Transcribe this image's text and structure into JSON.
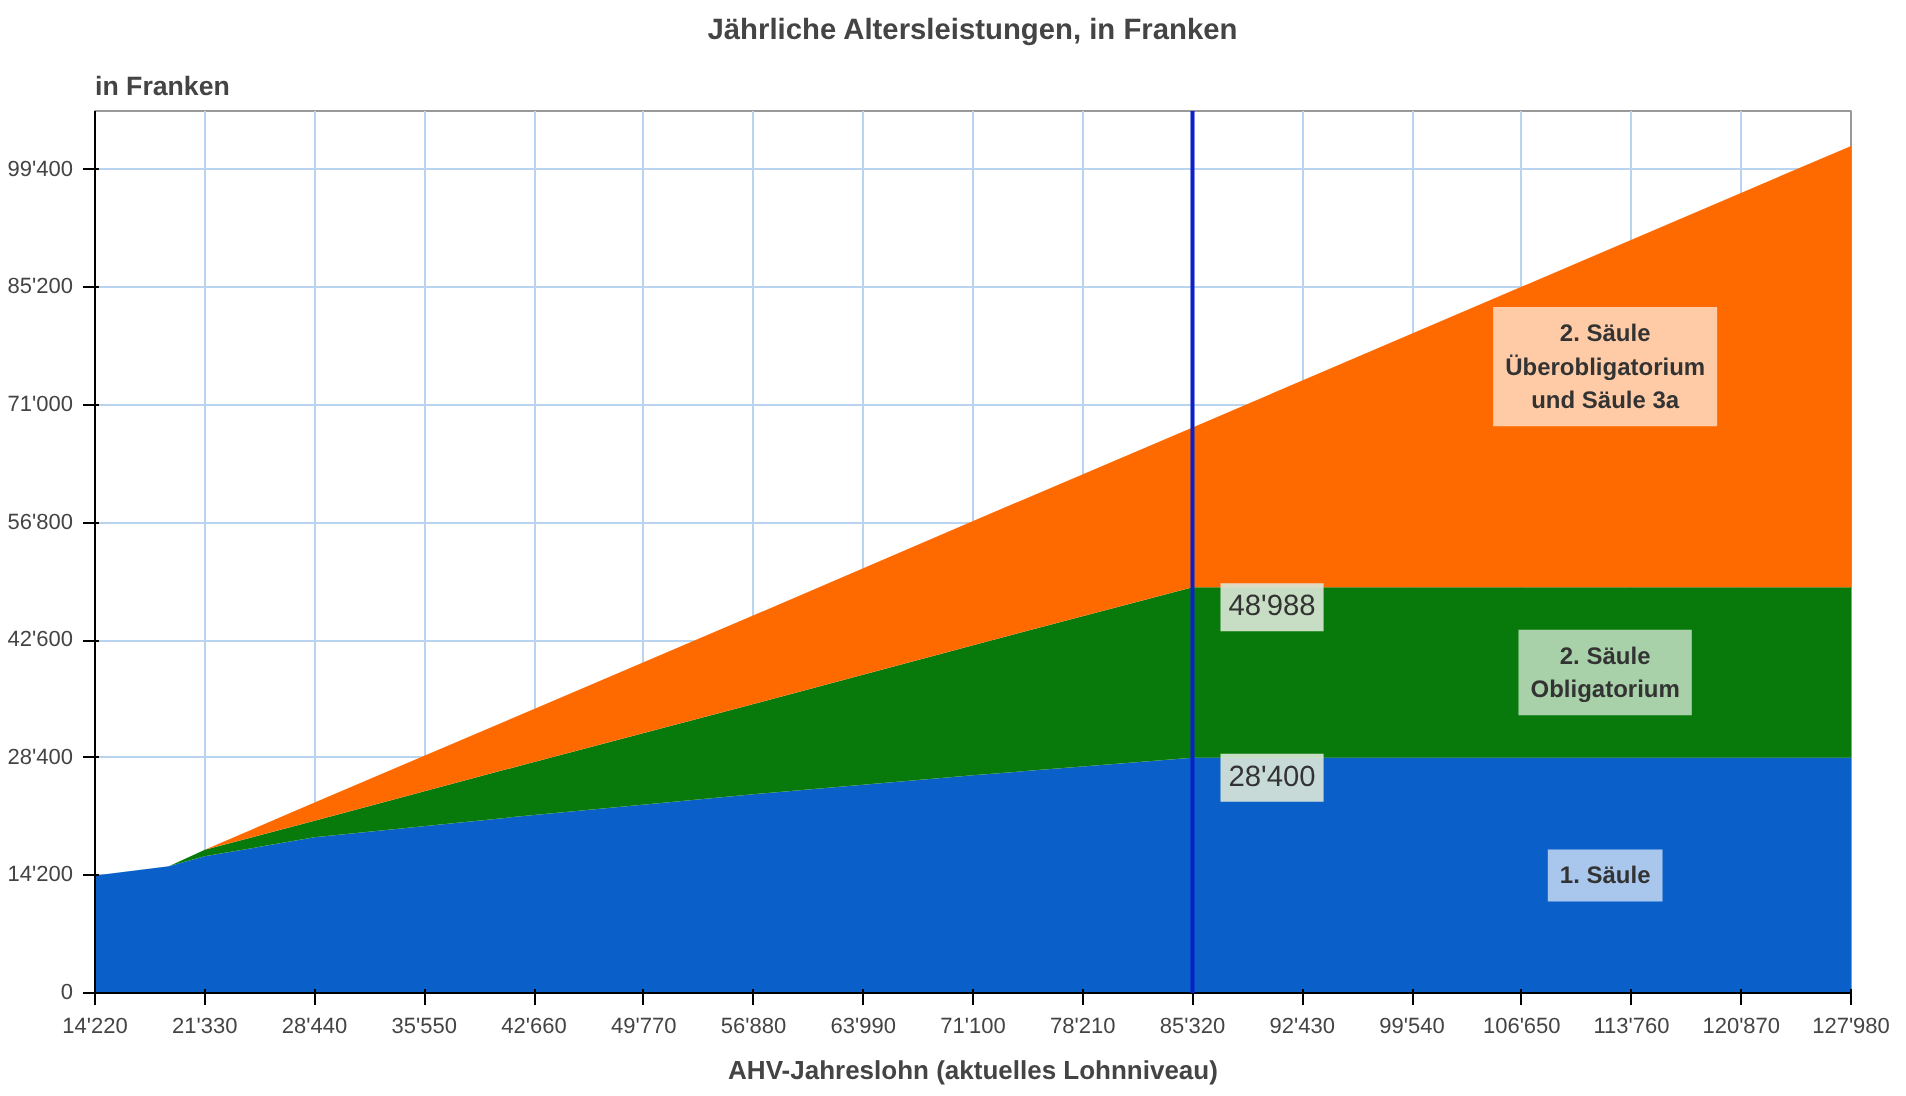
{
  "chart_data": {
    "type": "area",
    "stacked": true,
    "title": "Jährliche Altersleistungen, in Franken",
    "ylabel": "in Franken",
    "xlabel": "AHV-Jahreslohn (aktuelles Lohnniveau)",
    "x": [
      14220,
      19000,
      21330,
      28440,
      42660,
      56880,
      71100,
      85320,
      127980
    ],
    "series": [
      {
        "name": "1. Säule",
        "color": "#0a5fc8",
        "values": [
          14200,
          15300,
          16500,
          18800,
          21500,
          24000,
          26300,
          28400,
          28400
        ]
      },
      {
        "name": "2. Säule Obligatorium",
        "color": "#087a0b",
        "values": [
          0,
          0,
          800,
          2000,
          6400,
          10900,
          15700,
          20588,
          20588
        ]
      },
      {
        "name": "2. Säule Überobligatorium und Säule 3a",
        "color": "#fe6a00",
        "values": [
          0,
          0,
          0,
          2200,
          6400,
          10700,
          15000,
          19300,
          53300
        ]
      }
    ],
    "xlim": [
      14220,
      127980
    ],
    "ylim": [
      0,
      106500
    ],
    "xticks": [
      {
        "value": 14220,
        "label": "14'220"
      },
      {
        "value": 21330,
        "label": "21'330"
      },
      {
        "value": 28440,
        "label": "28'440"
      },
      {
        "value": 35550,
        "label": "35'550"
      },
      {
        "value": 42660,
        "label": "42'660"
      },
      {
        "value": 49770,
        "label": "49'770"
      },
      {
        "value": 56880,
        "label": "56'880"
      },
      {
        "value": 63990,
        "label": "63'990"
      },
      {
        "value": 71100,
        "label": "71'100"
      },
      {
        "value": 78210,
        "label": "78'210"
      },
      {
        "value": 85320,
        "label": "85'320"
      },
      {
        "value": 92430,
        "label": "92'430"
      },
      {
        "value": 99540,
        "label": "99'540"
      },
      {
        "value": 106650,
        "label": "106'650"
      },
      {
        "value": 113760,
        "label": "113'760"
      },
      {
        "value": 120870,
        "label": "120'870"
      },
      {
        "value": 127980,
        "label": "127'980"
      }
    ],
    "yticks": [
      0,
      {
        "value": 14200,
        "label": "14'200"
      },
      {
        "value": 28400,
        "label": "28'400"
      },
      {
        "value": 42600,
        "label": "42'600"
      },
      {
        "value": 56800,
        "label": "56'800"
      },
      {
        "value": 71000,
        "label": "71'000"
      },
      {
        "value": 85200,
        "label": "85'200"
      },
      {
        "value": 99400,
        "label": "99'400"
      }
    ],
    "ref_lines": [
      {
        "axis": "x",
        "value": 85320,
        "color": "#0a20c8"
      }
    ],
    "annotations": [
      {
        "text": "48'988",
        "x": 85320,
        "y": 48988
      },
      {
        "text": "28'400",
        "x": 85320,
        "y": 28400
      }
    ],
    "grid": true
  }
}
